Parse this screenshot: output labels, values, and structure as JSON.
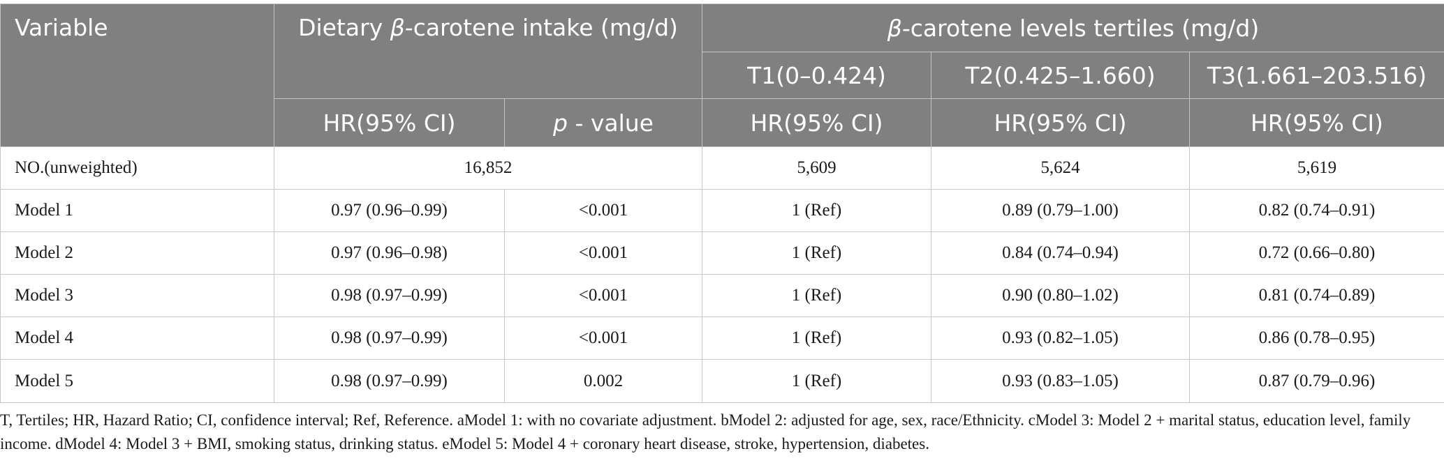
{
  "header": {
    "variable": "Variable",
    "intake_prefix": "Dietary ",
    "beta": "β",
    "intake_suffix": "-carotene intake (mg/d)",
    "tertiles_suffix": "-carotene levels tertiles (mg/d)",
    "t1": "T1(0–0.424)",
    "t2": "T2(0.425–1.660)",
    "t3": "T3(1.661–203.516)",
    "hr": "HR(95% CI)",
    "p_italic": "p",
    "p_rest": "- value"
  },
  "count_row": {
    "label": "NO.(unweighted)",
    "intake": "16,852",
    "t1": "5,609",
    "t2": "5,624",
    "t3": "5,619"
  },
  "rows": [
    {
      "model": "Model 1",
      "hr": "0.97 (0.96–0.99)",
      "p": "<0.001",
      "t1": "1 (Ref)",
      "t2": "0.89 (0.79–1.00)",
      "t3": "0.82 (0.74–0.91)"
    },
    {
      "model": "Model 2",
      "hr": "0.97 (0.96–0.98)",
      "p": "<0.001",
      "t1": "1 (Ref)",
      "t2": "0.84 (0.74–0.94)",
      "t3": "0.72 (0.66–0.80)"
    },
    {
      "model": "Model 3",
      "hr": "0.98 (0.97–0.99)",
      "p": "<0.001",
      "t1": "1 (Ref)",
      "t2": "0.90 (0.80–1.02)",
      "t3": "0.81 (0.74–0.89)"
    },
    {
      "model": "Model 4",
      "hr": "0.98 (0.97–0.99)",
      "p": "<0.001",
      "t1": "1 (Ref)",
      "t2": "0.93 (0.82–1.05)",
      "t3": "0.86 (0.78–0.95)"
    },
    {
      "model": "Model 5",
      "hr": "0.98 (0.97–0.99)",
      "p": "0.002",
      "t1": "1 (Ref)",
      "t2": "0.93 (0.83–1.05)",
      "t3": "0.87 (0.79–0.96)"
    }
  ],
  "footnote": "T, Tertiles; HR, Hazard Ratio; CI, confidence interval; Ref, Reference. aModel 1: with no covariate adjustment. bModel 2: adjusted for age, sex, race/Ethnicity. cModel 3: Model 2 + marital status, education level, family income. dModel 4: Model 3 + BMI, smoking status, drinking status. eModel 5: Model 4 + coronary heart disease, stroke, hypertension, diabetes.",
  "colors": {
    "header_bg": "#808080",
    "header_text": "#ffffff",
    "grid": "#c8c8c8"
  }
}
